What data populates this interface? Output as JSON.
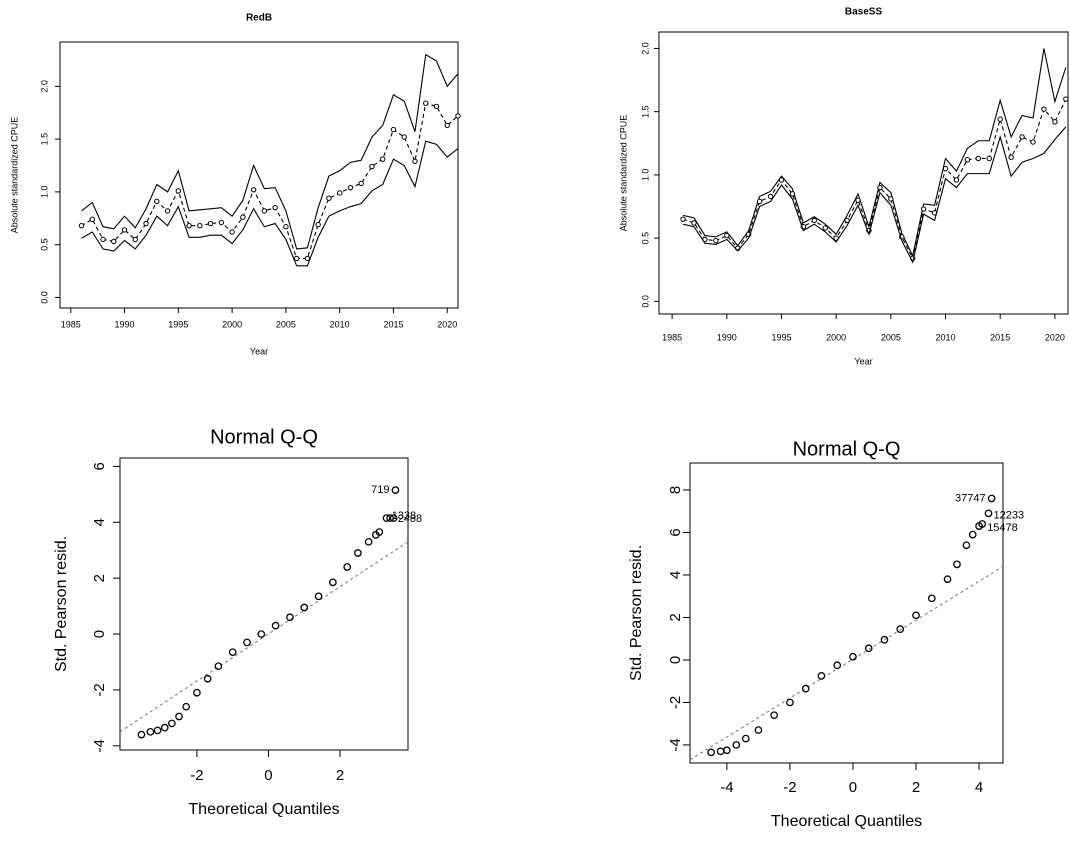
{
  "chart_data": [
    {
      "type": "line",
      "title": "RedB",
      "xlabel": "Year",
      "ylabel": "Absolute standardized CPUE",
      "x": [
        1986,
        1987,
        1988,
        1989,
        1990,
        1991,
        1992,
        1993,
        1994,
        1995,
        1996,
        1997,
        1998,
        1999,
        2000,
        2001,
        2002,
        2003,
        2004,
        2005,
        2006,
        2007,
        2008,
        2009,
        2010,
        2011,
        2012,
        2013,
        2014,
        2015,
        2016,
        2017,
        2018,
        2019,
        2020,
        2021
      ],
      "series": [
        {
          "color": "#000000",
          "values": [
            0.82,
            0.9,
            0.67,
            0.65,
            0.77,
            0.66,
            0.84,
            1.07,
            1.0,
            1.2,
            0.82,
            0.83,
            0.84,
            0.85,
            0.77,
            0.92,
            1.25,
            1.03,
            1.04,
            0.82,
            0.46,
            0.47,
            0.85,
            1.15,
            1.2,
            1.28,
            1.3,
            1.52,
            1.63,
            1.92,
            1.86,
            1.57,
            2.3,
            2.24,
            2.0,
            2.12
          ]
        },
        {
          "color": "#000000",
          "dashed": true,
          "marker": "circle",
          "values": [
            0.68,
            0.74,
            0.55,
            0.53,
            0.64,
            0.55,
            0.7,
            0.91,
            0.82,
            1.01,
            0.68,
            0.68,
            0.7,
            0.71,
            0.62,
            0.76,
            1.02,
            0.82,
            0.85,
            0.67,
            0.37,
            0.37,
            0.69,
            0.94,
            0.99,
            1.04,
            1.08,
            1.24,
            1.31,
            1.59,
            1.52,
            1.29,
            1.84,
            1.81,
            1.63,
            1.72
          ]
        },
        {
          "color": "#000000",
          "values": [
            0.56,
            0.62,
            0.46,
            0.44,
            0.54,
            0.46,
            0.59,
            0.77,
            0.68,
            0.86,
            0.57,
            0.57,
            0.59,
            0.59,
            0.51,
            0.64,
            0.84,
            0.67,
            0.7,
            0.55,
            0.3,
            0.3,
            0.57,
            0.77,
            0.82,
            0.86,
            0.89,
            1.01,
            1.07,
            1.31,
            1.25,
            1.05,
            1.48,
            1.45,
            1.33,
            1.41
          ]
        }
      ],
      "xlim": [
        1984,
        2021
      ],
      "xticks": [
        1985,
        1990,
        1995,
        2000,
        2005,
        2010,
        2015,
        2020
      ],
      "ylim": [
        -0.1,
        2.42
      ],
      "yticks": [
        {
          "value": 0,
          "label": "0.0"
        },
        0.5,
        {
          "value": 1,
          "label": "1.0"
        },
        1.5,
        {
          "value": 2,
          "label": "2.0"
        }
      ]
    },
    {
      "type": "line",
      "title": "BaseSS",
      "xlabel": "Year",
      "ylabel": "Absolute standardized CPUE",
      "x": [
        1986,
        1987,
        1988,
        1989,
        1990,
        1991,
        1992,
        1993,
        1994,
        1995,
        1996,
        1997,
        1998,
        1999,
        2000,
        2001,
        2002,
        2003,
        2004,
        2005,
        2006,
        2007,
        2008,
        2009,
        2010,
        2011,
        2012,
        2013,
        2014,
        2015,
        2016,
        2017,
        2018,
        2019,
        2020,
        2021
      ],
      "series": [
        {
          "color": "#000000",
          "values": [
            0.68,
            0.66,
            0.52,
            0.51,
            0.55,
            0.44,
            0.56,
            0.83,
            0.87,
            0.99,
            0.89,
            0.62,
            0.67,
            0.61,
            0.53,
            0.68,
            0.85,
            0.59,
            0.94,
            0.86,
            0.54,
            0.36,
            0.77,
            0.76,
            1.13,
            1.03,
            1.21,
            1.27,
            1.27,
            1.59,
            1.3,
            1.47,
            1.45,
            2.0,
            1.58,
            1.85
          ]
        },
        {
          "color": "#000000",
          "dashed": true,
          "marker": "circle",
          "values": [
            0.65,
            0.62,
            0.49,
            0.48,
            0.52,
            0.42,
            0.53,
            0.79,
            0.83,
            0.96,
            0.85,
            0.59,
            0.64,
            0.58,
            0.5,
            0.64,
            0.8,
            0.56,
            0.9,
            0.81,
            0.51,
            0.34,
            0.73,
            0.7,
            1.05,
            0.96,
            1.12,
            1.13,
            1.13,
            1.44,
            1.14,
            1.3,
            1.26,
            1.52,
            1.42,
            1.6
          ]
        },
        {
          "color": "#000000",
          "values": [
            0.61,
            0.59,
            0.46,
            0.45,
            0.49,
            0.4,
            0.5,
            0.75,
            0.79,
            0.92,
            0.81,
            0.56,
            0.61,
            0.55,
            0.47,
            0.6,
            0.76,
            0.53,
            0.86,
            0.76,
            0.48,
            0.31,
            0.69,
            0.64,
            0.97,
            0.9,
            1.01,
            1.01,
            1.01,
            1.3,
            0.99,
            1.1,
            1.13,
            1.17,
            1.28,
            1.38
          ]
        }
      ],
      "xlim": [
        1983.8,
        2021.2
      ],
      "xticks": [
        1985,
        1990,
        1995,
        2000,
        2005,
        2010,
        2015,
        2020
      ],
      "ylim": [
        -0.1,
        2.13
      ],
      "yticks": [
        {
          "value": 0,
          "label": "0.0"
        },
        0.5,
        {
          "value": 1,
          "label": "1.0"
        },
        1.5,
        {
          "value": 2,
          "label": "2.0"
        }
      ]
    },
    {
      "type": "scatter",
      "title": "Normal Q-Q",
      "xlabel": "Theoretical Quantiles",
      "ylabel": "Std. Pearson resid.",
      "x": [
        -3.55,
        -3.3,
        -3.1,
        -2.9,
        -2.7,
        -2.5,
        -2.3,
        -2.0,
        -1.7,
        -1.4,
        -1.0,
        -0.6,
        -0.2,
        0.2,
        0.6,
        1.0,
        1.4,
        1.8,
        2.2,
        2.5,
        2.8,
        3.0,
        3.1,
        3.3,
        3.4,
        3.5,
        3.55
      ],
      "values": [
        -3.6,
        -3.5,
        -3.45,
        -3.35,
        -3.2,
        -2.95,
        -2.6,
        -2.1,
        -1.6,
        -1.15,
        -0.65,
        -0.3,
        0.0,
        0.3,
        0.6,
        0.95,
        1.35,
        1.85,
        2.4,
        2.9,
        3.3,
        3.55,
        3.65,
        4.15,
        4.15,
        4.15,
        5.15
      ],
      "color": "#000000",
      "reference_line": {
        "x": [
          -4.15,
          3.9
        ],
        "values": [
          -3.5,
          3.3
        ],
        "color": "#888888"
      },
      "annotations": [
        "719",
        "1338",
        "2488"
      ],
      "xlim": [
        -4.15,
        3.9
      ],
      "xticks": [
        -2,
        0,
        2
      ],
      "ylim": [
        -4.15,
        6.3
      ],
      "yticks": [
        -4,
        -2,
        0,
        2,
        4,
        6
      ]
    },
    {
      "type": "scatter",
      "title": "Normal Q-Q",
      "xlabel": "Theoretical Quantiles",
      "ylabel": "Std. Pearson resid.",
      "x": [
        -4.5,
        -4.2,
        -4.0,
        -3.7,
        -3.4,
        -3.0,
        -2.5,
        -2.0,
        -1.5,
        -1.0,
        -0.5,
        0,
        0.5,
        1.0,
        1.5,
        2.0,
        2.5,
        3.0,
        3.3,
        3.6,
        3.8,
        4.0,
        4.1,
        4.3,
        4.4
      ],
      "values": [
        -4.35,
        -4.3,
        -4.25,
        -4.0,
        -3.7,
        -3.3,
        -2.6,
        -2.0,
        -1.35,
        -0.75,
        -0.25,
        0.15,
        0.55,
        0.95,
        1.45,
        2.1,
        2.9,
        3.8,
        4.5,
        5.4,
        5.9,
        6.3,
        6.4,
        6.9,
        7.6
      ],
      "color": "#000000",
      "reference_line": {
        "x": [
          -5.17,
          4.76
        ],
        "values": [
          -4.7,
          4.4
        ],
        "color": "#888888"
      },
      "annotations": [
        "37747",
        "12233",
        "15478"
      ],
      "xlim": [
        -5.17,
        4.76
      ],
      "xticks": [
        -4,
        -2,
        0,
        2,
        4
      ],
      "ylim": [
        -4.85,
        9.27
      ],
      "yticks": [
        -4,
        -2,
        0,
        2,
        4,
        6,
        8
      ]
    }
  ]
}
